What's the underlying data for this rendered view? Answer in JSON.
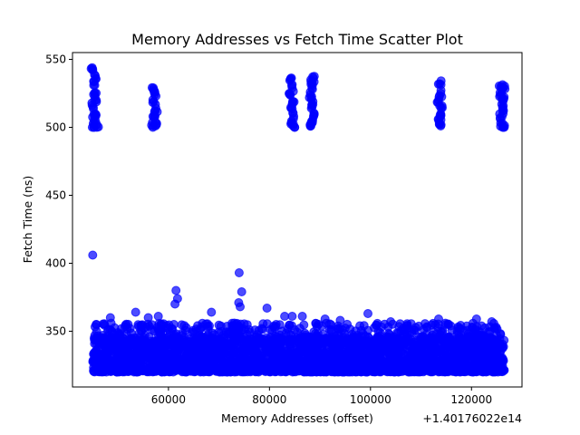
{
  "chart_data": {
    "type": "scatter",
    "title": "Memory Addresses vs Fetch Time Scatter Plot",
    "xlabel": "Memory Addresses (offset)",
    "ylabel": "Fetch Time (ns)",
    "x_offset_text": "+1.40176022e14",
    "xlim": [
      41000,
      130000
    ],
    "ylim": [
      309,
      555
    ],
    "x_ticks": [
      60000,
      80000,
      100000,
      120000
    ],
    "y_ticks": [
      350,
      400,
      450,
      500,
      550
    ],
    "x_tick_labels": [
      "60000",
      "80000",
      "100000",
      "120000"
    ],
    "y_tick_labels": [
      "350",
      "400",
      "450",
      "500",
      "550"
    ],
    "grid": false,
    "point_color": "#0000ff",
    "point_alpha": 0.7,
    "series": [
      {
        "high_band_points": [
          [
            45000,
            542
          ],
          [
            45600,
            536
          ],
          [
            45200,
            531
          ],
          [
            45400,
            525
          ],
          [
            45700,
            520
          ],
          [
            45100,
            515
          ],
          [
            45500,
            510
          ],
          [
            45300,
            505
          ],
          [
            45800,
            502
          ],
          [
            45200,
            500
          ],
          [
            57000,
            529
          ],
          [
            57300,
            524
          ],
          [
            57100,
            519
          ],
          [
            57500,
            514
          ],
          [
            57200,
            509
          ],
          [
            57400,
            504
          ],
          [
            57000,
            501
          ],
          [
            84200,
            536
          ],
          [
            84500,
            529
          ],
          [
            84100,
            524
          ],
          [
            84600,
            519
          ],
          [
            84300,
            514
          ],
          [
            84800,
            508
          ],
          [
            84400,
            503
          ],
          [
            84700,
            501
          ],
          [
            88200,
            535
          ],
          [
            88700,
            536
          ],
          [
            88400,
            529
          ],
          [
            88100,
            524
          ],
          [
            88600,
            519
          ],
          [
            88300,
            514
          ],
          [
            88800,
            509
          ],
          [
            88500,
            504
          ],
          [
            88200,
            501
          ],
          [
            113700,
            532
          ],
          [
            113900,
            525
          ],
          [
            113500,
            520
          ],
          [
            114000,
            514
          ],
          [
            113800,
            509
          ],
          [
            113600,
            504
          ],
          [
            113900,
            501
          ],
          [
            125800,
            530
          ],
          [
            126300,
            529
          ],
          [
            125900,
            525
          ],
          [
            126400,
            521
          ],
          [
            126000,
            517
          ],
          [
            126200,
            512
          ],
          [
            125700,
            507
          ],
          [
            126100,
            503
          ],
          [
            126300,
            500
          ]
        ],
        "outlier_points": [
          [
            45000,
            406
          ],
          [
            74000,
            393
          ],
          [
            74500,
            379
          ],
          [
            61500,
            380
          ],
          [
            61800,
            374
          ],
          [
            61300,
            370
          ],
          [
            73900,
            371
          ],
          [
            74200,
            368
          ],
          [
            79500,
            367
          ],
          [
            68500,
            364
          ],
          [
            53500,
            364
          ],
          [
            99500,
            363
          ],
          [
            48500,
            360
          ],
          [
            56000,
            360
          ],
          [
            58000,
            361
          ],
          [
            83000,
            361
          ],
          [
            84500,
            361
          ],
          [
            86500,
            361
          ],
          [
            91000,
            359
          ],
          [
            94000,
            358
          ],
          [
            104000,
            357
          ],
          [
            113500,
            359
          ],
          [
            121000,
            359
          ],
          [
            124000,
            357
          ]
        ],
        "dense_band": {
          "x_range": [
            45000,
            126500
          ],
          "y_range": [
            320,
            356
          ]
        }
      }
    ]
  }
}
